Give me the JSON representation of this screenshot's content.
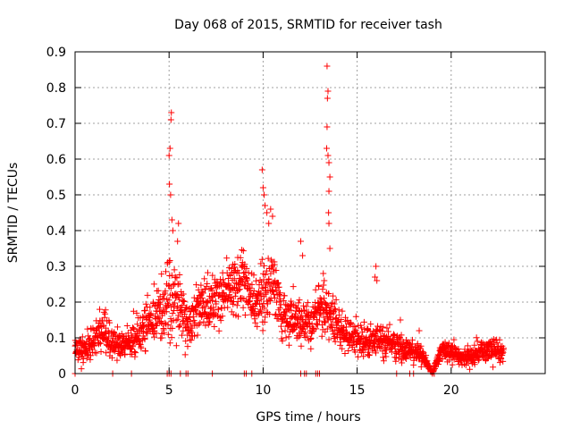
{
  "chart_data": {
    "type": "scatter",
    "title": "Day 068 of 2015, SRMTID for receiver tash",
    "xlabel": "GPS time / hours",
    "ylabel": "SRMTID / TECUs",
    "xlim": [
      0,
      25
    ],
    "ylim": [
      0,
      0.9
    ],
    "x_ticks": [
      0,
      5,
      10,
      15,
      20
    ],
    "y_ticks": [
      0,
      0.1,
      0.2,
      0.3,
      0.4,
      0.5,
      0.6,
      0.7,
      0.8,
      0.9
    ],
    "x_tick_labels": [
      "0",
      "5",
      "10",
      "15",
      "20"
    ],
    "y_tick_labels": [
      "0",
      "0.1",
      "0.2",
      "0.3",
      "0.4",
      "0.5",
      "0.6",
      "0.7",
      "0.8",
      "0.9"
    ],
    "grid": true,
    "marker": "+",
    "marker_color": "#ff0000",
    "envelope": {
      "description": "approximate mean level of the point cloud (data units)",
      "x": [
        0,
        0.5,
        1.0,
        1.5,
        2.0,
        2.5,
        3.0,
        3.5,
        4.0,
        4.5,
        5.0,
        5.5,
        6.0,
        6.5,
        7.0,
        7.5,
        8.0,
        8.5,
        9.0,
        9.5,
        10.0,
        10.5,
        11.0,
        11.5,
        12.0,
        12.5,
        13.0,
        13.5,
        14.0,
        14.5,
        15.0,
        15.5,
        16.0,
        16.5,
        17.0,
        17.5,
        18.0,
        18.5,
        19.0,
        19.5,
        20.0,
        20.5,
        21.0,
        21.5,
        22.0,
        22.5,
        22.8
      ],
      "y": [
        0.07,
        0.07,
        0.09,
        0.12,
        0.08,
        0.08,
        0.09,
        0.12,
        0.14,
        0.17,
        0.2,
        0.22,
        0.12,
        0.18,
        0.2,
        0.2,
        0.22,
        0.25,
        0.26,
        0.2,
        0.22,
        0.28,
        0.15,
        0.14,
        0.16,
        0.12,
        0.18,
        0.17,
        0.14,
        0.11,
        0.1,
        0.08,
        0.1,
        0.09,
        0.08,
        0.07,
        0.06,
        0.05,
        0.0,
        0.07,
        0.06,
        0.05,
        0.05,
        0.06,
        0.07,
        0.06,
        0.06
      ],
      "spread": [
        0.02,
        0.03,
        0.03,
        0.04,
        0.03,
        0.03,
        0.03,
        0.04,
        0.05,
        0.06,
        0.07,
        0.06,
        0.04,
        0.05,
        0.05,
        0.05,
        0.05,
        0.06,
        0.06,
        0.06,
        0.07,
        0.06,
        0.05,
        0.05,
        0.05,
        0.04,
        0.05,
        0.05,
        0.04,
        0.03,
        0.03,
        0.03,
        0.03,
        0.03,
        0.03,
        0.03,
        0.02,
        0.02,
        0.0,
        0.02,
        0.02,
        0.02,
        0.02,
        0.02,
        0.02,
        0.02,
        0.02
      ]
    },
    "peak_points": [
      {
        "x": 5.0,
        "y": 0.61
      },
      {
        "x": 5.05,
        "y": 0.63
      },
      {
        "x": 5.1,
        "y": 0.71
      },
      {
        "x": 5.12,
        "y": 0.73
      },
      {
        "x": 5.02,
        "y": 0.53
      },
      {
        "x": 5.08,
        "y": 0.5
      },
      {
        "x": 5.15,
        "y": 0.43
      },
      {
        "x": 5.2,
        "y": 0.4
      },
      {
        "x": 5.5,
        "y": 0.42
      },
      {
        "x": 5.45,
        "y": 0.37
      },
      {
        "x": 9.95,
        "y": 0.57
      },
      {
        "x": 10.0,
        "y": 0.52
      },
      {
        "x": 10.05,
        "y": 0.5
      },
      {
        "x": 10.1,
        "y": 0.47
      },
      {
        "x": 10.2,
        "y": 0.45
      },
      {
        "x": 10.3,
        "y": 0.42
      },
      {
        "x": 10.4,
        "y": 0.46
      },
      {
        "x": 10.5,
        "y": 0.44
      },
      {
        "x": 12.0,
        "y": 0.37
      },
      {
        "x": 12.1,
        "y": 0.33
      },
      {
        "x": 13.4,
        "y": 0.86
      },
      {
        "x": 13.45,
        "y": 0.79
      },
      {
        "x": 13.42,
        "y": 0.77
      },
      {
        "x": 13.4,
        "y": 0.69
      },
      {
        "x": 13.38,
        "y": 0.63
      },
      {
        "x": 13.45,
        "y": 0.61
      },
      {
        "x": 13.5,
        "y": 0.59
      },
      {
        "x": 13.55,
        "y": 0.55
      },
      {
        "x": 13.5,
        "y": 0.51
      },
      {
        "x": 13.48,
        "y": 0.45
      },
      {
        "x": 13.5,
        "y": 0.42
      },
      {
        "x": 13.55,
        "y": 0.35
      },
      {
        "x": 13.2,
        "y": 0.28
      },
      {
        "x": 13.25,
        "y": 0.26
      },
      {
        "x": 16.0,
        "y": 0.3
      },
      {
        "x": 15.95,
        "y": 0.27
      },
      {
        "x": 16.05,
        "y": 0.26
      },
      {
        "x": 17.3,
        "y": 0.15
      },
      {
        "x": 18.3,
        "y": 0.12
      }
    ],
    "baseline_points_x": [
      0,
      2.0,
      3.0,
      4.9,
      5.0,
      5.1,
      5.6,
      5.9,
      6.0,
      7.3,
      9.0,
      9.1,
      9.4,
      12.0,
      12.2,
      12.3,
      12.8,
      12.9,
      13.0,
      17.1,
      17.8,
      18.0,
      19.0,
      19.1
    ]
  }
}
